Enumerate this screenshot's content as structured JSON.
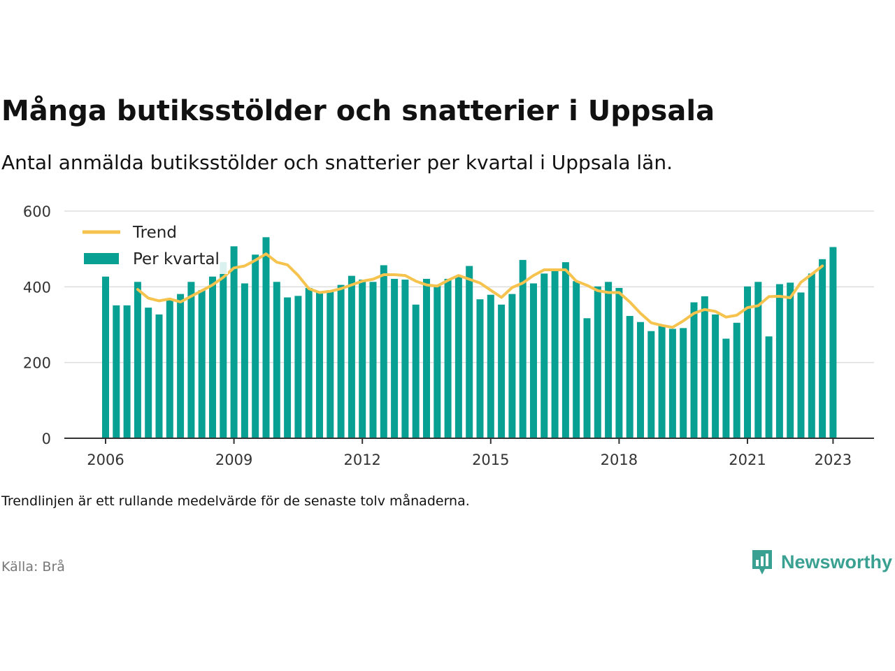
{
  "title": "Många butiksstölder och snatterier i Uppsala",
  "subtitle": "Antal anmälda butiksstölder och snatterier per kvartal i Uppsala län.",
  "note": "Trendlinjen är ett rullande medelvärde för de senaste tolv månaderna.",
  "source": "Källa: Brå",
  "brand": {
    "name": "Newsworthy",
    "icon": "newsworthy-logo-icon",
    "color": "#3aa192"
  },
  "colors": {
    "bar": "#08a093",
    "trend": "#f5c34e",
    "grid": "#dddddd",
    "axis": "#333333"
  },
  "chart_data": {
    "type": "bar",
    "title": "Många butiksstölder och snatterier i Uppsala",
    "legend": {
      "placement": "top-left",
      "entries": [
        "Trend",
        "Per kvartal"
      ]
    },
    "ylim": [
      0,
      600
    ],
    "yticks": [
      0,
      200,
      400,
      600
    ],
    "xticks": [
      "2006",
      "2009",
      "2012",
      "2015",
      "2018",
      "2021",
      "2023"
    ],
    "grid": true,
    "x": [
      "2006-Q1",
      "2006-Q2",
      "2006-Q3",
      "2006-Q4",
      "2007-Q1",
      "2007-Q2",
      "2007-Q3",
      "2007-Q4",
      "2008-Q1",
      "2008-Q2",
      "2008-Q3",
      "2008-Q4",
      "2009-Q1",
      "2009-Q2",
      "2009-Q3",
      "2009-Q4",
      "2010-Q1",
      "2010-Q2",
      "2010-Q3",
      "2010-Q4",
      "2011-Q1",
      "2011-Q2",
      "2011-Q3",
      "2011-Q4",
      "2012-Q1",
      "2012-Q2",
      "2012-Q3",
      "2012-Q4",
      "2013-Q1",
      "2013-Q2",
      "2013-Q3",
      "2013-Q4",
      "2014-Q1",
      "2014-Q2",
      "2014-Q3",
      "2014-Q4",
      "2015-Q1",
      "2015-Q2",
      "2015-Q3",
      "2015-Q4",
      "2016-Q1",
      "2016-Q2",
      "2016-Q3",
      "2016-Q4",
      "2017-Q1",
      "2017-Q2",
      "2017-Q3",
      "2017-Q4",
      "2018-Q1",
      "2018-Q2",
      "2018-Q3",
      "2018-Q4",
      "2019-Q1",
      "2019-Q2",
      "2019-Q3",
      "2019-Q4",
      "2020-Q1",
      "2020-Q2",
      "2020-Q3",
      "2020-Q4",
      "2021-Q1",
      "2021-Q2",
      "2021-Q3",
      "2021-Q4",
      "2022-Q1",
      "2022-Q2",
      "2022-Q3",
      "2022-Q4",
      "2023-Q1"
    ],
    "series": [
      {
        "name": "Per kvartal",
        "type": "bar",
        "values": [
          427,
          351,
          351,
          413,
          345,
          327,
          367,
          381,
          413,
          391,
          427,
          465,
          507,
          409,
          485,
          531,
          413,
          372,
          376,
          397,
          385,
          391,
          405,
          429,
          419,
          413,
          457,
          421,
          419,
          353,
          421,
          405,
          421,
          427,
          455,
          367,
          379,
          353,
          381,
          471,
          409,
          435,
          445,
          465,
          415,
          317,
          401,
          413,
          397,
          323,
          307,
          283,
          299,
          289,
          291,
          359,
          375,
          327,
          263,
          305,
          401,
          413,
          269,
          407,
          411,
          385,
          435,
          473,
          505
        ]
      },
      {
        "name": "Trend",
        "type": "line",
        "values": [
          null,
          null,
          null,
          393,
          370,
          363,
          368,
          360,
          375,
          390,
          405,
          425,
          450,
          455,
          470,
          487,
          465,
          458,
          430,
          395,
          385,
          388,
          395,
          405,
          415,
          420,
          432,
          432,
          430,
          415,
          405,
          402,
          417,
          430,
          420,
          410,
          391,
          372,
          398,
          410,
          430,
          445,
          445,
          445,
          415,
          404,
          390,
          385,
          385,
          360,
          330,
          305,
          298,
          293,
          310,
          330,
          340,
          335,
          320,
          325,
          345,
          350,
          374,
          375,
          371,
          412,
          433,
          455,
          null
        ]
      }
    ]
  }
}
